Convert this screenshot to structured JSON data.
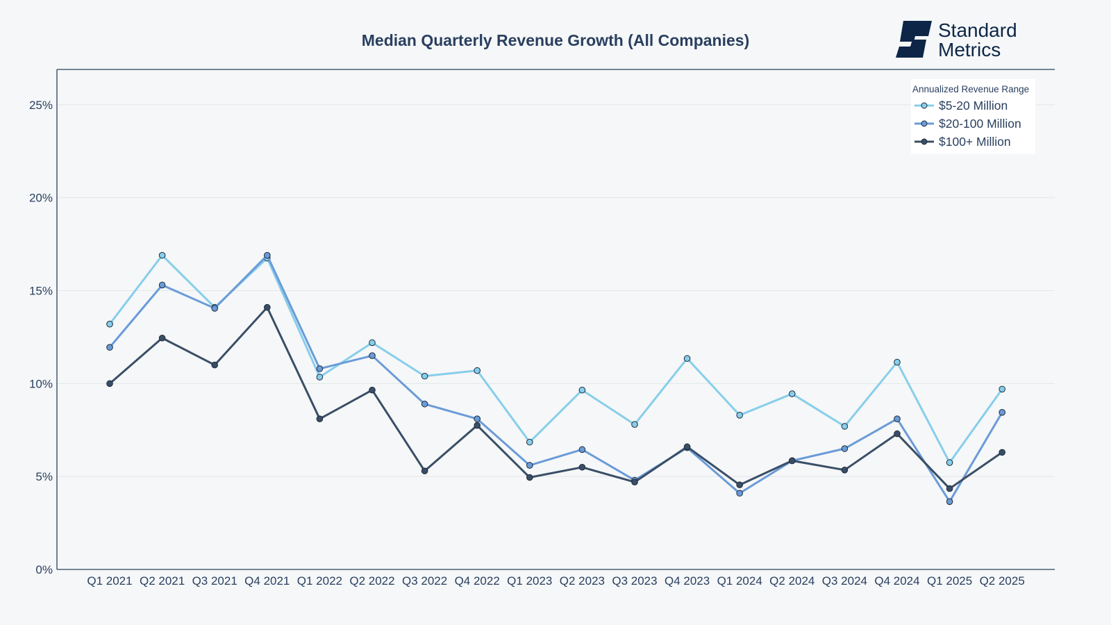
{
  "brand": {
    "line1": "Standard",
    "line2": "Metrics",
    "color": "#0d2647"
  },
  "chart_data": {
    "type": "line",
    "title": "Median Quarterly Revenue Growth (All Companies)",
    "xlabel": "",
    "ylabel": "",
    "categories": [
      "Q1 2021",
      "Q2 2021",
      "Q3 2021",
      "Q4 2021",
      "Q1 2022",
      "Q2 2022",
      "Q3 2022",
      "Q4 2022",
      "Q1 2023",
      "Q2 2023",
      "Q3 2023",
      "Q4 2023",
      "Q1 2024",
      "Q2 2024",
      "Q3 2024",
      "Q4 2024",
      "Q1 2025",
      "Q2 2025"
    ],
    "ylim": [
      0,
      26.9
    ],
    "yticks": [
      0,
      5,
      10,
      15,
      20,
      25
    ],
    "ytick_labels": [
      "0%",
      "5%",
      "10%",
      "15%",
      "20%",
      "25%"
    ],
    "grid": true,
    "legend": {
      "title": "Annualized Revenue Range",
      "position": "top-right"
    },
    "series": [
      {
        "name": "$5-20 Million",
        "color": "#87ceeb",
        "values": [
          13.2,
          16.9,
          14.1,
          16.75,
          10.35,
          12.2,
          10.4,
          10.7,
          6.85,
          9.65,
          7.8,
          11.35,
          8.3,
          9.45,
          7.7,
          11.15,
          5.75,
          9.7
        ]
      },
      {
        "name": "$20-100 Million",
        "color": "#6a9bd8",
        "values": [
          11.95,
          15.3,
          14.05,
          16.9,
          10.8,
          11.5,
          8.9,
          8.1,
          5.6,
          6.45,
          4.8,
          6.55,
          4.1,
          5.85,
          6.5,
          8.1,
          3.65,
          8.45
        ]
      },
      {
        "name": "$100+ Million",
        "color": "#3a4e66",
        "values": [
          10.0,
          12.45,
          11.0,
          14.1,
          8.1,
          9.65,
          5.3,
          7.75,
          4.95,
          5.5,
          4.7,
          6.6,
          4.55,
          5.85,
          5.35,
          7.3,
          4.35,
          6.3
        ]
      }
    ]
  }
}
